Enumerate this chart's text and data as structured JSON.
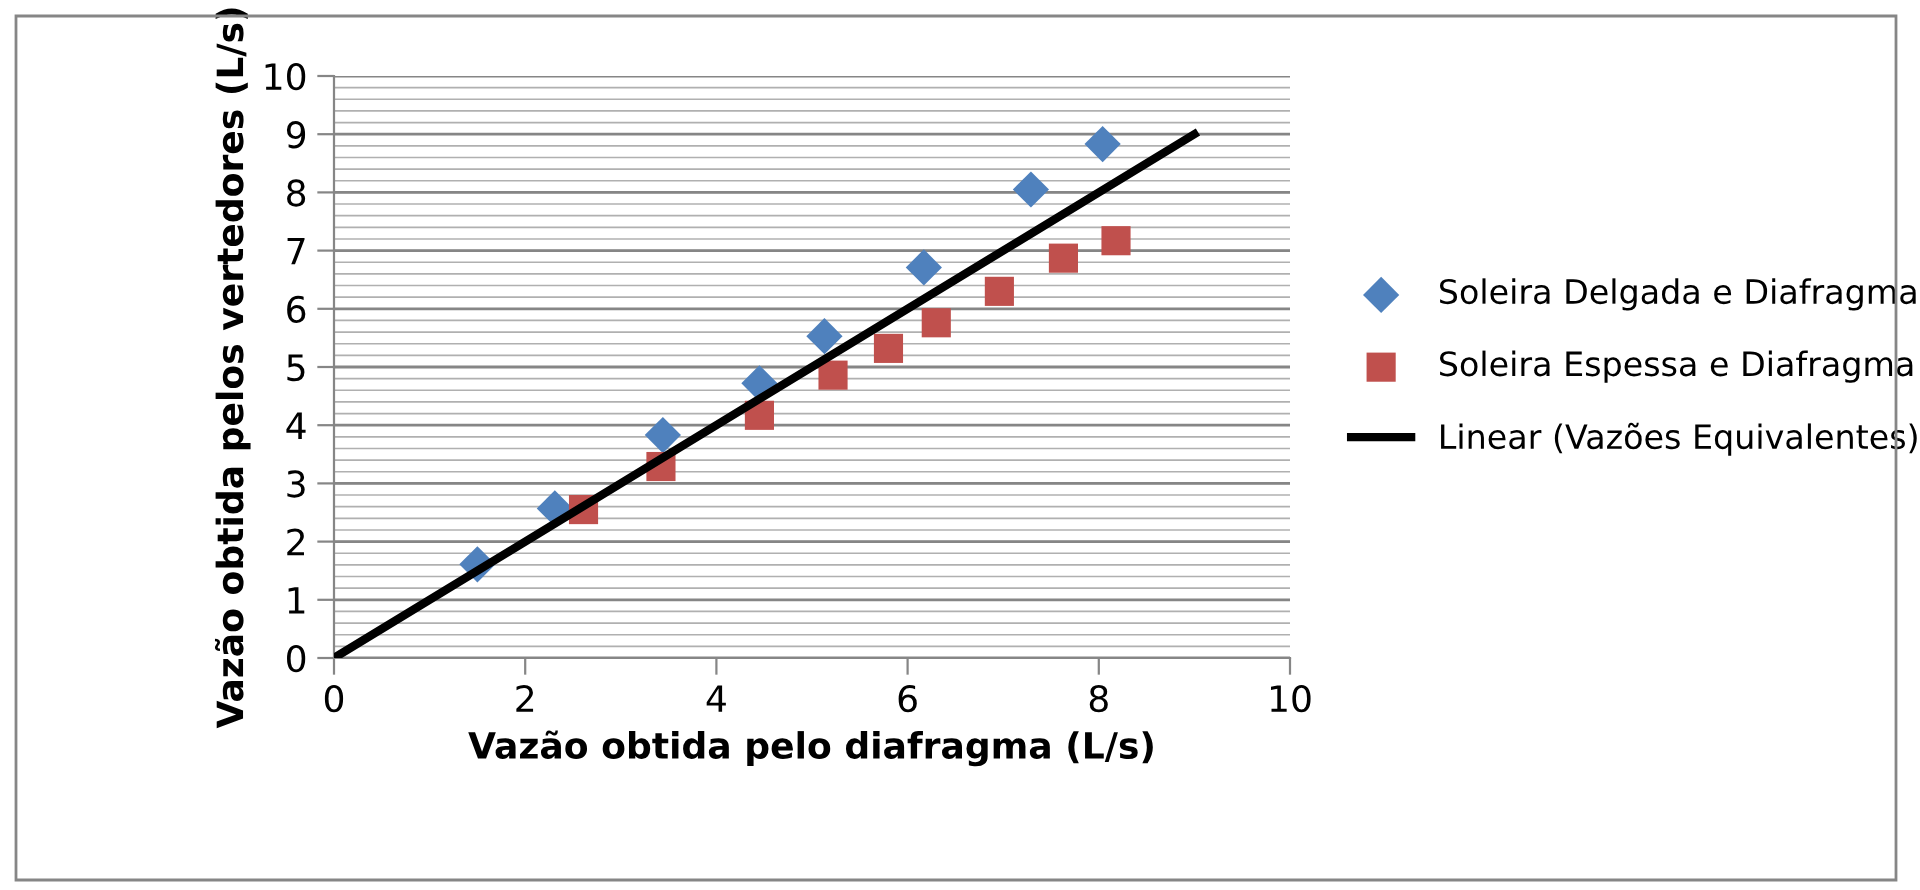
{
  "chart_data": {
    "type": "scatter",
    "xlabel": "Vazão obtida pelo diafragma (L/s)",
    "ylabel": "Vazão obtida pelos vertedores (L/s)",
    "series": [
      {
        "name": "Soleira Delgada e Diafragma",
        "color": "#4f81bd",
        "marker": "diamond",
        "x": [
          1.5,
          2.31,
          3.44,
          4.45,
          5.13,
          6.17,
          7.29,
          8.04
        ],
        "values": [
          1.61,
          2.57,
          3.83,
          4.72,
          5.53,
          6.71,
          8.05,
          8.83
        ]
      },
      {
        "name": "Soleira Espessa e Diafragma",
        "color": "#c0504d",
        "marker": "square",
        "x": [
          2.61,
          3.42,
          4.45,
          5.22,
          5.8,
          6.3,
          6.96,
          7.63,
          8.18
        ],
        "values": [
          2.55,
          3.29,
          4.17,
          4.86,
          5.32,
          5.76,
          6.3,
          6.87,
          7.17
        ]
      },
      {
        "name": "Linear (Vazões Equivalentes)",
        "type": "line",
        "color": "#000000",
        "marker": "none",
        "line_style": "solid",
        "x": [
          0,
          9
        ],
        "values": [
          0,
          9
        ]
      }
    ],
    "xlim": [
      0,
      10
    ],
    "ylim": [
      0,
      10
    ],
    "xticks": [
      0,
      2,
      4,
      6,
      8,
      10
    ],
    "yticks": [
      0,
      1,
      2,
      3,
      4,
      5,
      6,
      7,
      8,
      9,
      10
    ],
    "grid": "y",
    "legend": "right"
  }
}
